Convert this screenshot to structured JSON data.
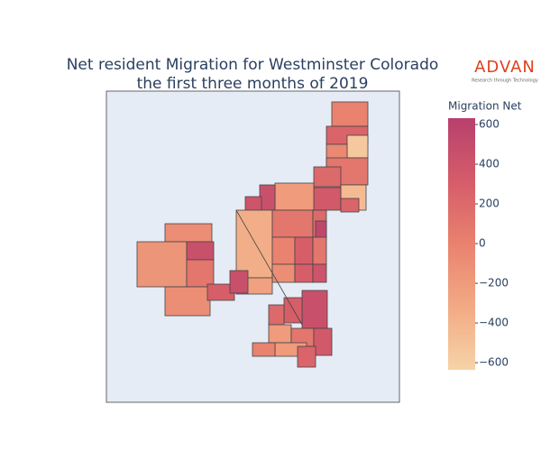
{
  "chart_data": {
    "type": "choropleth",
    "title": "Net resident Migration for Westminster Colorado",
    "subtitle": "the first three months of 2019",
    "logo": {
      "name": "ADVAN",
      "tagline": "Research through Technology"
    },
    "colorbar_title": "Migration Net",
    "zlim": [
      -636,
      632
    ],
    "zticks": [
      {
        "value": -600,
        "label": "−600"
      },
      {
        "value": -400,
        "label": "−400"
      },
      {
        "value": -200,
        "label": "−200"
      },
      0,
      200,
      400,
      600
    ],
    "colorscale": [
      "#f6d3a8",
      "#f2aa84",
      "#e9826f",
      "#d55c69",
      "#b8406d"
    ],
    "values": [
      0,
      250,
      -550,
      -50,
      100,
      200,
      -450,
      350,
      250,
      -200,
      450,
      400,
      -350,
      100,
      200,
      550,
      0,
      300,
      100,
      -100,
      300,
      400,
      -250,
      -100,
      -150,
      450,
      100,
      -100,
      300,
      450,
      450,
      300,
      200,
      -200,
      100,
      350,
      -200,
      0,
      250
    ]
  }
}
